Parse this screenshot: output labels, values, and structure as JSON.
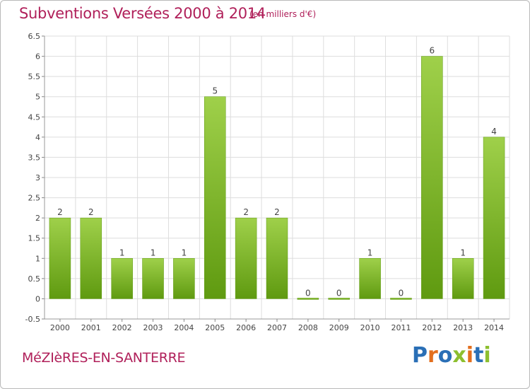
{
  "title": "Subventions Versées 2000 à 2014",
  "subtitle": "(en milliers d'€)",
  "commune": "MéZIèRES-EN-SANTERRE",
  "logo": {
    "letters": [
      "P",
      "r",
      "o",
      "x",
      "i",
      "t",
      "i"
    ],
    "colors": [
      "#2a6fb6",
      "#e36f1e",
      "#2a6fb6",
      "#8dbf2f",
      "#e36f1e",
      "#2a6fb6",
      "#8dbf2f"
    ]
  },
  "chart_data": {
    "type": "bar",
    "categories": [
      "2000",
      "2001",
      "2002",
      "2003",
      "2004",
      "2005",
      "2006",
      "2007",
      "2008",
      "2009",
      "2010",
      "2011",
      "2012",
      "2013",
      "2014"
    ],
    "values": [
      2,
      2,
      1,
      1,
      1,
      5,
      2,
      2,
      0,
      0,
      1,
      0,
      6,
      1,
      4
    ],
    "data_labels": [
      "2",
      "2",
      "1",
      "1",
      "1",
      "5",
      "2",
      "2",
      "0",
      "0",
      "1",
      "0",
      "6",
      "1",
      "4"
    ],
    "ylim": [
      -0.5,
      6.5
    ],
    "yticks": [
      "-0.5",
      "0",
      "0.5",
      "1",
      "1.5",
      "2",
      "2.5",
      "3",
      "3.5",
      "4",
      "4.5",
      "5",
      "5.5",
      "6",
      "6.5"
    ],
    "ytick_values": [
      -0.5,
      0,
      0.5,
      1,
      1.5,
      2,
      2.5,
      3,
      3.5,
      4,
      4.5,
      5,
      5.5,
      6,
      6.5
    ],
    "grid": true,
    "bar_color_light": "#9fd04a",
    "bar_color_dark": "#5f9a10",
    "grid_color": "#dddddd"
  }
}
